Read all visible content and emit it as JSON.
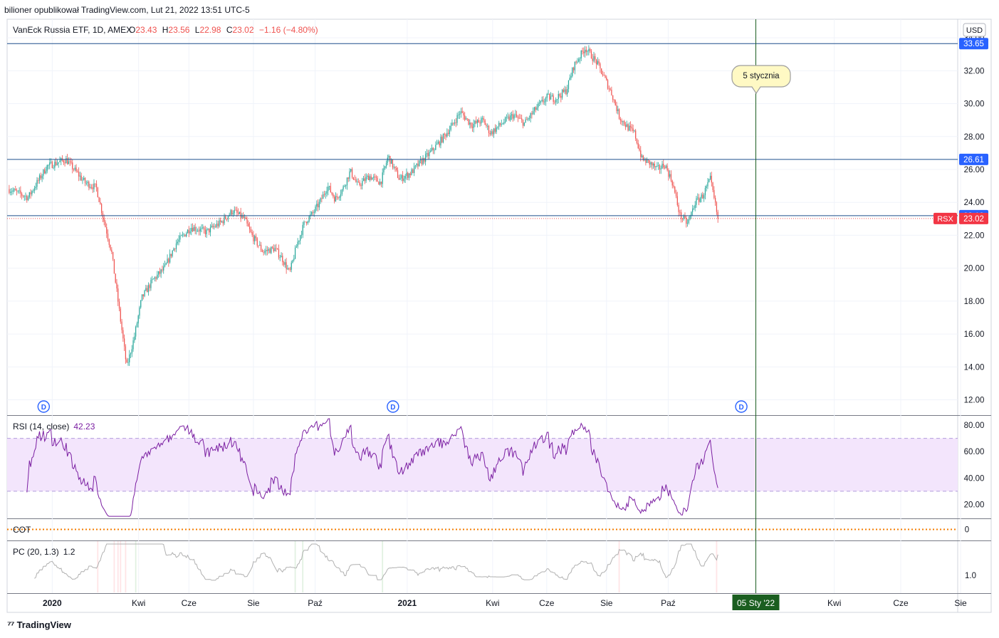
{
  "header": {
    "published_by": "bilioner opublikował TradingView.com, Lut 21, 2022 13:51 UTC-5"
  },
  "legend": {
    "name": "VanEck Russia ETF, 1D, AMEX",
    "o_label": "O",
    "o_value": "23.43",
    "h_label": "H",
    "h_value": "23.56",
    "l_label": "L",
    "l_value": "22.98",
    "c_label": "C",
    "c_value": "23.02",
    "change": "−1.16 (−4.80%)"
  },
  "currency_button": "USD",
  "footer_brand": "TradingView",
  "annotation": {
    "text": "5 stycznia"
  },
  "colors": {
    "up": "#26a69a",
    "down": "#ef5350",
    "hline": "#1e4f8c",
    "vline": "#1b5e20",
    "rsi_line": "#7b1fa2",
    "rsi_band": "#f3e5fc",
    "cot": "#f57c00",
    "pc_line": "#b0b0b0",
    "price_tag_blue": "#2962ff",
    "price_tag_red": "#f23645",
    "date_tag": "#1b5e20"
  },
  "chart_data": [
    {
      "type": "candlestick",
      "symbol": "RSX",
      "y_ticks": [
        "12.00",
        "14.00",
        "16.00",
        "18.00",
        "20.00",
        "22.00",
        "24.00",
        "26.00",
        "28.00",
        "30.00",
        "32.00",
        "34.00"
      ],
      "ylim": [
        11.2,
        35.0
      ],
      "x_tick_labels": [
        "2020",
        "Kwi",
        "Cze",
        "Sie",
        "Paź",
        "2021",
        "Kwi",
        "Cze",
        "Sie",
        "Paź",
        "Kwi",
        "Cze",
        "Sie"
      ],
      "x_tick_bold": [
        "2020",
        "2021"
      ],
      "current_date_label": "05 Sty '22",
      "horizontal_lines": [
        {
          "value": 33.65,
          "label": "33.65"
        },
        {
          "value": 26.61,
          "label": "26.61"
        },
        {
          "value": 23.19,
          "label": "23.19"
        }
      ],
      "last_price": {
        "value": 23.02,
        "label": "23.02",
        "symbol_label": "RSX"
      },
      "dividend_markers": [
        "D",
        "D",
        "D"
      ],
      "path_anchors": [
        [
          0,
          24.8
        ],
        [
          5,
          24.3
        ],
        [
          10,
          26.2
        ],
        [
          15,
          26.6
        ],
        [
          20,
          25.2
        ],
        [
          23,
          24.9
        ],
        [
          25,
          22.9
        ],
        [
          27,
          21.0
        ],
        [
          29,
          17.5
        ],
        [
          31,
          14.0
        ],
        [
          33,
          15.8
        ],
        [
          35,
          18.2
        ],
        [
          38,
          19.3
        ],
        [
          41,
          20.0
        ],
        [
          44,
          21.5
        ],
        [
          48,
          22.5
        ],
        [
          52,
          22.2
        ],
        [
          56,
          22.8
        ],
        [
          59,
          23.5
        ],
        [
          62,
          23.0
        ],
        [
          64,
          22.0
        ],
        [
          67,
          21.0
        ],
        [
          70,
          21.2
        ],
        [
          72,
          20.6
        ],
        [
          74,
          19.7
        ],
        [
          76,
          21.5
        ],
        [
          78,
          22.8
        ],
        [
          80,
          23.3
        ],
        [
          82,
          24.0
        ],
        [
          84,
          25.0
        ],
        [
          86,
          24.2
        ],
        [
          88,
          24.8
        ],
        [
          90,
          25.9
        ],
        [
          92,
          25.0
        ],
        [
          95,
          25.6
        ],
        [
          98,
          25.2
        ],
        [
          100,
          26.8
        ],
        [
          103,
          25.4
        ],
        [
          106,
          25.8
        ],
        [
          108,
          26.3
        ],
        [
          111,
          27.0
        ],
        [
          114,
          27.8
        ],
        [
          117,
          28.7
        ],
        [
          119,
          29.5
        ],
        [
          122,
          28.7
        ],
        [
          125,
          29.0
        ],
        [
          127,
          28.2
        ],
        [
          130,
          28.8
        ],
        [
          133,
          29.3
        ],
        [
          136,
          28.8
        ],
        [
          139,
          29.7
        ],
        [
          142,
          30.4
        ],
        [
          144,
          30.3
        ],
        [
          147,
          30.8
        ],
        [
          149,
          32.3
        ],
        [
          152,
          33.4
        ],
        [
          155,
          32.5
        ],
        [
          157,
          31.6
        ],
        [
          159,
          30.6
        ],
        [
          161,
          29.2
        ],
        [
          163,
          28.6
        ],
        [
          165,
          28.2
        ],
        [
          167,
          26.6
        ],
        [
          169,
          26.4
        ],
        [
          171,
          26.0
        ],
        [
          173,
          26.3
        ],
        [
          175,
          25.2
        ],
        [
          177,
          23.2
        ],
        [
          179,
          22.7
        ],
        [
          181,
          24.0
        ],
        [
          183,
          24.4
        ],
        [
          185,
          25.4
        ],
        [
          186,
          24.2
        ],
        [
          187,
          23.02
        ]
      ]
    },
    {
      "type": "line",
      "name": "RSI (14, close)",
      "value_label": "42.23",
      "y_ticks": [
        "20.00",
        "40.00",
        "60.00",
        "80.00"
      ],
      "ylim": [
        10,
        87
      ],
      "band": [
        30,
        70
      ]
    },
    {
      "type": "line",
      "name": "COT",
      "y_ticks": [
        "0"
      ]
    },
    {
      "type": "line",
      "name": "PC (20, 1.3)",
      "value_label": "1.2",
      "y_ticks": [
        "1.0"
      ]
    }
  ]
}
